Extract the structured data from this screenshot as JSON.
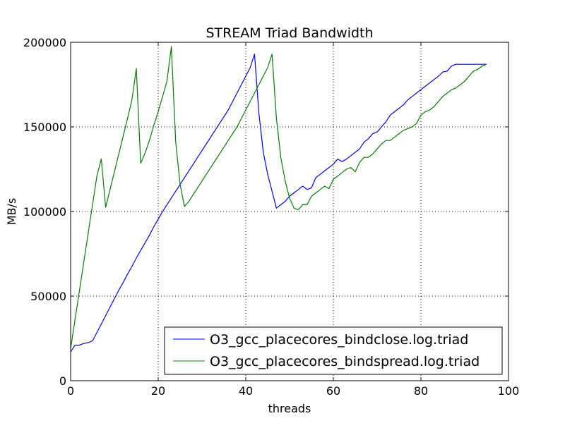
{
  "chart_data": {
    "type": "line",
    "title": "STREAM Triad Bandwidth",
    "xlabel": "threads",
    "ylabel": "MB/s",
    "xlim": [
      0,
      100
    ],
    "ylim": [
      0,
      200000
    ],
    "xticks": [
      "0",
      "20",
      "40",
      "60",
      "80",
      "100"
    ],
    "yticks": [
      "0",
      "50000",
      "100000",
      "150000",
      "200000"
    ],
    "grid": true,
    "legend_position": "lower-right",
    "series": [
      {
        "name": "O3_gcc_placecores_bindclose.log.triad",
        "color": "#0000ff",
        "x": [
          0,
          1,
          2,
          3,
          4,
          5,
          6,
          7,
          8,
          9,
          10,
          11,
          12,
          13,
          14,
          15,
          16,
          17,
          18,
          19,
          20,
          21,
          22,
          23,
          24,
          25,
          26,
          27,
          28,
          29,
          30,
          31,
          32,
          33,
          34,
          35,
          36,
          37,
          38,
          39,
          40,
          41,
          42,
          43,
          44,
          45,
          46,
          47,
          48,
          49,
          50,
          51,
          52,
          53,
          54,
          55,
          56,
          57,
          58,
          59,
          60,
          61,
          62,
          63,
          64,
          65,
          66,
          67,
          68,
          69,
          70,
          71,
          72,
          73,
          74,
          75,
          76,
          77,
          78,
          79,
          80,
          81,
          82,
          83,
          84,
          85,
          86,
          87,
          88,
          89,
          90,
          91,
          92,
          93,
          94,
          95
        ],
        "y": [
          17000,
          21000,
          21000,
          22000,
          22500,
          23500,
          28500,
          33500,
          38500,
          43500,
          48500,
          53500,
          58000,
          63000,
          67500,
          72500,
          77000,
          81500,
          86000,
          91000,
          95500,
          100000,
          104000,
          108000,
          112000,
          116000,
          120000,
          124000,
          128000,
          132000,
          136000,
          140000,
          144000,
          148000,
          152000,
          156000,
          160000,
          165000,
          170000,
          175000,
          180000,
          185000,
          193000,
          158000,
          135000,
          122000,
          112000,
          102000,
          104000,
          106000,
          109000,
          111000,
          113000,
          115000,
          113000,
          114000,
          120000,
          122000,
          124000,
          126000,
          128000,
          131000,
          129500,
          131000,
          133000,
          135000,
          137000,
          141000,
          143000,
          146000,
          147000,
          150000,
          153000,
          157000,
          159000,
          161000,
          163000,
          166000,
          168000,
          170000,
          172000,
          174000,
          176000,
          178000,
          180000,
          182500,
          183000,
          186000,
          187000,
          187000,
          187000,
          187000,
          187000,
          187000,
          187000,
          187000
        ]
      },
      {
        "name": "O3_gcc_placecores_bindspread.log.triad",
        "color": "#008000",
        "x": [
          0,
          1,
          2,
          3,
          4,
          5,
          6,
          7,
          8,
          9,
          10,
          11,
          12,
          13,
          14,
          15,
          16,
          17,
          18,
          19,
          20,
          21,
          22,
          23,
          24,
          25,
          26,
          27,
          28,
          29,
          30,
          31,
          32,
          33,
          34,
          35,
          36,
          37,
          38,
          39,
          40,
          41,
          42,
          43,
          44,
          45,
          46,
          47,
          48,
          49,
          50,
          51,
          52,
          53,
          54,
          55,
          56,
          57,
          58,
          59,
          60,
          61,
          62,
          63,
          64,
          65,
          66,
          67,
          68,
          69,
          70,
          71,
          72,
          73,
          74,
          75,
          76,
          77,
          78,
          79,
          80,
          81,
          82,
          83,
          84,
          85,
          86,
          87,
          88,
          89,
          90,
          91,
          92,
          93,
          94,
          95
        ],
        "y": [
          19000,
          36000,
          53000,
          70000,
          87000,
          104000,
          121000,
          131000,
          102500,
          113000,
          123500,
          134000,
          144500,
          155000,
          166000,
          184500,
          128500,
          134500,
          142000,
          151000,
          159000,
          168000,
          177000,
          197500,
          141000,
          116000,
          103000,
          106000,
          110000,
          114000,
          118000,
          122000,
          126000,
          130000,
          134000,
          138000,
          142000,
          146000,
          150000,
          155000,
          160000,
          165000,
          170000,
          175000,
          180000,
          185000,
          193000,
          155000,
          132000,
          118000,
          108000,
          102000,
          101000,
          104000,
          104000,
          109000,
          111000,
          113000,
          115000,
          113500,
          119000,
          121000,
          123000,
          125000,
          126000,
          123500,
          129000,
          132000,
          132000,
          134000,
          137000,
          140000,
          142000,
          142000,
          144000,
          146000,
          148000,
          149000,
          150000,
          152000,
          157000,
          159000,
          160000,
          162000,
          165000,
          168000,
          170000,
          172000,
          173000,
          175000,
          177000,
          180000,
          183000,
          184000,
          186000,
          187000
        ]
      }
    ]
  }
}
